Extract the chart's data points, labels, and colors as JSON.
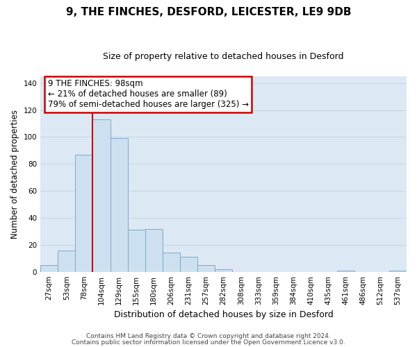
{
  "title": "9, THE FINCHES, DESFORD, LEICESTER, LE9 9DB",
  "subtitle": "Size of property relative to detached houses in Desford",
  "xlabel": "Distribution of detached houses by size in Desford",
  "ylabel": "Number of detached properties",
  "bar_labels": [
    "27sqm",
    "53sqm",
    "78sqm",
    "104sqm",
    "129sqm",
    "155sqm",
    "180sqm",
    "206sqm",
    "231sqm",
    "257sqm",
    "282sqm",
    "308sqm",
    "333sqm",
    "359sqm",
    "384sqm",
    "410sqm",
    "435sqm",
    "461sqm",
    "486sqm",
    "512sqm",
    "537sqm"
  ],
  "bar_values": [
    5,
    16,
    87,
    113,
    99,
    31,
    32,
    14,
    11,
    5,
    2,
    0,
    0,
    0,
    0,
    0,
    0,
    1,
    0,
    0,
    1
  ],
  "bar_color": "#cce0f0",
  "bar_edge_color": "#7aaac8",
  "vline_color": "#cc0000",
  "ylim": [
    0,
    145
  ],
  "yticks": [
    0,
    20,
    40,
    60,
    80,
    100,
    120,
    140
  ],
  "annotation_title": "9 THE FINCHES: 98sqm",
  "annotation_line1": "← 21% of detached houses are smaller (89)",
  "annotation_line2": "79% of semi-detached houses are larger (325) →",
  "annotation_box_color": "#ffffff",
  "annotation_box_edge": "#cc0000",
  "footer_line1": "Contains HM Land Registry data © Crown copyright and database right 2024.",
  "footer_line2": "Contains public sector information licensed under the Open Government Licence v3.0.",
  "grid_color": "#c8d8e8",
  "background_color": "#dce8f4",
  "title_fontsize": 11,
  "subtitle_fontsize": 9,
  "ylabel_fontsize": 8.5,
  "xlabel_fontsize": 9,
  "tick_fontsize": 7.5,
  "annotation_fontsize": 8.5,
  "footer_fontsize": 6.5
}
